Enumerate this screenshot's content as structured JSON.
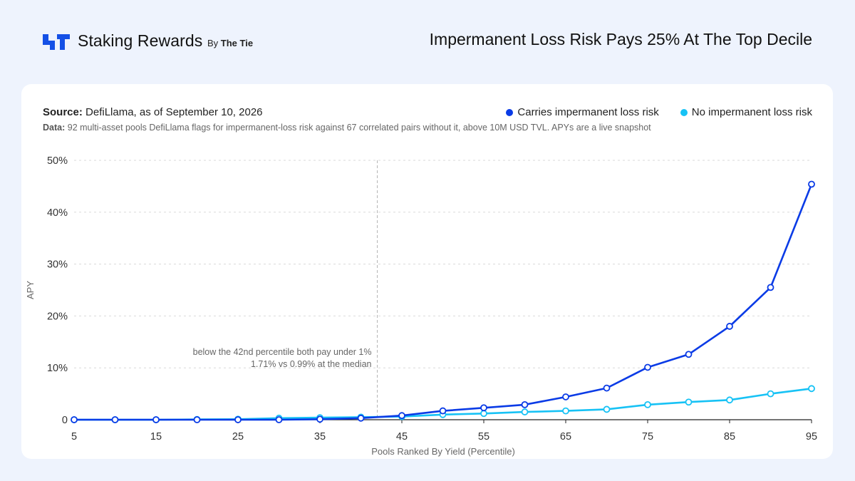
{
  "header": {
    "brand": "Staking Rewards",
    "brand_by_prefix": "By",
    "brand_by_name": "The Tie",
    "headline": "Impermanent Loss Risk Pays 25% At The Top Decile",
    "logo_icon": "staking-rewards-logo-icon"
  },
  "source": {
    "label": "Source:",
    "text": "DefiLlama, as of September 10, 2026"
  },
  "datanote": {
    "label": "Data:",
    "text": "92 multi-asset pools DefiLlama flags for impermanent-loss risk against 67 correlated pairs without it, above 10M USD TVL. APYs are a live snapshot"
  },
  "colors": {
    "series_il": "#0a3be6",
    "series_no_il": "#17c2f5",
    "grid": "#d9d9d9",
    "axis": "#222222",
    "background": "#eef3fd"
  },
  "chart_data": {
    "type": "line",
    "title": "Impermanent Loss Risk Pays 25% At The Top Decile",
    "xlabel": "Pools Ranked By Yield (Percentile)",
    "ylabel": "APY",
    "x": [
      5,
      10,
      15,
      20,
      25,
      30,
      35,
      40,
      45,
      50,
      55,
      60,
      65,
      70,
      75,
      80,
      85,
      90,
      95
    ],
    "xticks": [
      5,
      15,
      25,
      35,
      45,
      55,
      65,
      75,
      85,
      95
    ],
    "yticks": [
      0,
      10,
      20,
      30,
      40,
      50
    ],
    "ytick_labels": [
      "0",
      "10%",
      "20%",
      "30%",
      "40%",
      "50%"
    ],
    "xlim": [
      5,
      95
    ],
    "ylim": [
      0,
      50
    ],
    "grid": "horizontal dashed",
    "legend_position": "top-right",
    "series": [
      {
        "name": "Carries impermanent loss risk",
        "values": [
          0,
          0,
          0,
          0,
          0,
          0,
          0.1,
          0.3,
          0.8,
          1.71,
          2.3,
          2.9,
          4.4,
          6.1,
          10.1,
          12.6,
          18.0,
          25.5,
          45.4
        ]
      },
      {
        "name": "No impermanent loss risk",
        "values": [
          0,
          0,
          0,
          0.05,
          0.1,
          0.3,
          0.4,
          0.5,
          0.6,
          0.99,
          1.2,
          1.5,
          1.7,
          2.0,
          2.9,
          3.4,
          3.8,
          5.0,
          6.0
        ]
      }
    ],
    "annotation": {
      "x": 42,
      "lines": [
        "below the 42nd percentile both pay under 1%",
        "1.71% vs 0.99% at the median"
      ]
    }
  }
}
